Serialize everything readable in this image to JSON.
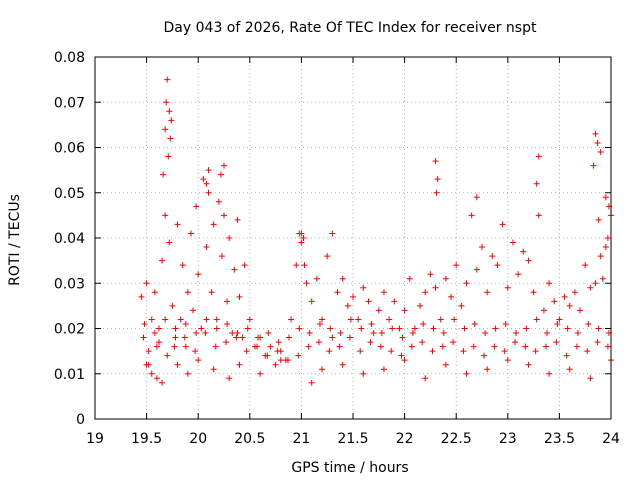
{
  "chart_data": {
    "type": "scatter",
    "title": "Day 043 of 2026, Rate Of TEC Index for receiver nspt",
    "xlabel": "GPS time / hours",
    "ylabel": "ROTI / TECUs",
    "xlim": [
      19,
      24
    ],
    "ylim": [
      0,
      0.08
    ],
    "x_ticks": [
      "19",
      "19.5",
      "20",
      "20.5",
      "21",
      "21.5",
      "22",
      "22.5",
      "23",
      "23.5",
      "24"
    ],
    "y_ticks": [
      "0",
      "0.01",
      "0.02",
      "0.03",
      "0.04",
      "0.05",
      "0.06",
      "0.07",
      "0.08"
    ],
    "grid": true,
    "marker": "+",
    "series": [
      {
        "name": "ROTI",
        "color": "#ff0000",
        "x": [
          19.45,
          19.47,
          19.5,
          19.52,
          19.55,
          19.58,
          19.6,
          19.62,
          19.65,
          19.68,
          19.7,
          19.72,
          19.75,
          19.78,
          19.8,
          19.83,
          19.85,
          19.88,
          19.9,
          19.93,
          19.95,
          19.98,
          20.0,
          20.03,
          20.05,
          20.08,
          20.1,
          20.13,
          20.15,
          20.18,
          20.2,
          20.23,
          20.25,
          20.28,
          20.3,
          20.33,
          20.35,
          20.38,
          20.4,
          20.43,
          20.45,
          20.5,
          20.55,
          20.6,
          20.65,
          20.7,
          20.75,
          20.8,
          20.85,
          20.9,
          20.95,
          20.98,
          21.0,
          21.03,
          21.05,
          21.1,
          21.15,
          21.2,
          21.25,
          21.3,
          21.35,
          21.4,
          21.45,
          21.5,
          21.55,
          21.6,
          21.65,
          21.7,
          21.75,
          21.8,
          21.85,
          21.9,
          21.95,
          22.0,
          22.05,
          22.1,
          22.15,
          22.2,
          22.25,
          22.3,
          22.35,
          22.4,
          22.45,
          22.5,
          22.55,
          22.6,
          22.65,
          22.7,
          22.75,
          22.8,
          22.85,
          22.9,
          22.95,
          23.0,
          23.05,
          23.1,
          23.15,
          23.2,
          23.25,
          23.3,
          23.35,
          23.4,
          23.45,
          23.5,
          23.55,
          23.6,
          23.65,
          23.7,
          23.75,
          23.8,
          23.85,
          23.88,
          23.9,
          23.92,
          23.95,
          23.97,
          24.0,
          19.7,
          19.72,
          19.69,
          19.74,
          19.68,
          19.73,
          19.66,
          19.71,
          20.1,
          20.25,
          20.08,
          20.22,
          21.0,
          21.02,
          21.3,
          22.3,
          22.32,
          22.31,
          22.7,
          23.3,
          23.28,
          23.85,
          23.87,
          23.9,
          23.83,
          23.95,
          23.98,
          19.5,
          19.55,
          19.6,
          19.65,
          19.8,
          19.9,
          20.0,
          20.15,
          20.3,
          20.4,
          20.6,
          20.8,
          21.1,
          21.2,
          21.4,
          21.6,
          21.8,
          22.0,
          22.2,
          22.4,
          22.6,
          22.8,
          23.0,
          23.2,
          23.4,
          23.6,
          23.8,
          24.0,
          19.52,
          19.62,
          19.77,
          19.87,
          19.97,
          20.07,
          20.17,
          20.27,
          20.37,
          20.47,
          20.57,
          20.67,
          20.77,
          20.87,
          20.97,
          21.07,
          21.17,
          21.27,
          21.37,
          21.47,
          21.57,
          21.67,
          21.77,
          21.87,
          21.97,
          22.07,
          22.17,
          22.27,
          22.37,
          22.47,
          22.57,
          22.67,
          22.77,
          22.87,
          22.97,
          23.07,
          23.17,
          23.27,
          23.37,
          23.47,
          23.57,
          23.67,
          23.77,
          23.87,
          23.97,
          19.48,
          19.58,
          19.68,
          19.78,
          19.88,
          19.98,
          20.08,
          20.18,
          20.28,
          20.38,
          20.48,
          20.58,
          20.68,
          20.78,
          20.88,
          20.98,
          21.08,
          21.18,
          21.28,
          21.38,
          21.48,
          21.58,
          21.68,
          21.78,
          21.88,
          21.98,
          22.08,
          22.18,
          22.28,
          22.38,
          22.48,
          22.58,
          22.68,
          22.78,
          22.88,
          22.98,
          23.08,
          23.18,
          23.28,
          23.38,
          23.48,
          23.58,
          23.68,
          23.78,
          23.88,
          23.98
        ],
        "y": [
          0.027,
          0.018,
          0.03,
          0.012,
          0.022,
          0.028,
          0.016,
          0.02,
          0.035,
          0.045,
          0.014,
          0.039,
          0.025,
          0.018,
          0.043,
          0.022,
          0.034,
          0.016,
          0.028,
          0.041,
          0.024,
          0.047,
          0.032,
          0.02,
          0.053,
          0.038,
          0.05,
          0.028,
          0.043,
          0.022,
          0.048,
          0.036,
          0.045,
          0.026,
          0.04,
          0.019,
          0.033,
          0.044,
          0.027,
          0.018,
          0.034,
          0.022,
          0.016,
          0.018,
          0.014,
          0.016,
          0.012,
          0.015,
          0.013,
          0.022,
          0.034,
          0.041,
          0.039,
          0.034,
          0.03,
          0.026,
          0.031,
          0.022,
          0.036,
          0.018,
          0.028,
          0.031,
          0.025,
          0.027,
          0.022,
          0.029,
          0.026,
          0.019,
          0.024,
          0.028,
          0.022,
          0.026,
          0.02,
          0.024,
          0.031,
          0.02,
          0.025,
          0.028,
          0.032,
          0.029,
          0.022,
          0.031,
          0.027,
          0.034,
          0.025,
          0.03,
          0.045,
          0.033,
          0.038,
          0.028,
          0.036,
          0.034,
          0.043,
          0.029,
          0.039,
          0.032,
          0.037,
          0.035,
          0.028,
          0.045,
          0.024,
          0.03,
          0.026,
          0.022,
          0.027,
          0.025,
          0.028,
          0.024,
          0.034,
          0.029,
          0.03,
          0.044,
          0.036,
          0.031,
          0.038,
          0.04,
          0.045,
          0.075,
          0.068,
          0.07,
          0.066,
          0.064,
          0.062,
          0.054,
          0.058,
          0.055,
          0.056,
          0.052,
          0.054,
          0.041,
          0.04,
          0.041,
          0.057,
          0.053,
          0.05,
          0.049,
          0.058,
          0.052,
          0.063,
          0.061,
          0.059,
          0.056,
          0.049,
          0.047,
          0.012,
          0.01,
          0.009,
          0.008,
          0.012,
          0.01,
          0.013,
          0.011,
          0.009,
          0.012,
          0.01,
          0.013,
          0.008,
          0.011,
          0.012,
          0.01,
          0.011,
          0.013,
          0.009,
          0.012,
          0.01,
          0.011,
          0.013,
          0.012,
          0.01,
          0.011,
          0.009,
          0.013,
          0.015,
          0.017,
          0.016,
          0.018,
          0.015,
          0.019,
          0.016,
          0.017,
          0.018,
          0.015,
          0.016,
          0.014,
          0.015,
          0.013,
          0.014,
          0.016,
          0.017,
          0.015,
          0.016,
          0.018,
          0.015,
          0.017,
          0.016,
          0.015,
          0.014,
          0.016,
          0.017,
          0.015,
          0.016,
          0.017,
          0.015,
          0.016,
          0.014,
          0.016,
          0.015,
          0.017,
          0.016,
          0.015,
          0.016,
          0.017,
          0.014,
          0.016,
          0.015,
          0.017,
          0.016,
          0.021,
          0.019,
          0.022,
          0.02,
          0.021,
          0.019,
          0.022,
          0.02,
          0.021,
          0.019,
          0.02,
          0.018,
          0.019,
          0.017,
          0.018,
          0.02,
          0.019,
          0.021,
          0.02,
          0.019,
          0.022,
          0.02,
          0.021,
          0.019,
          0.02,
          0.018,
          0.019,
          0.021,
          0.02,
          0.019,
          0.022,
          0.02,
          0.021,
          0.019,
          0.02,
          0.021,
          0.019,
          0.02,
          0.022,
          0.019,
          0.021,
          0.02,
          0.019,
          0.021,
          0.02,
          0.019
        ]
      }
    ]
  }
}
